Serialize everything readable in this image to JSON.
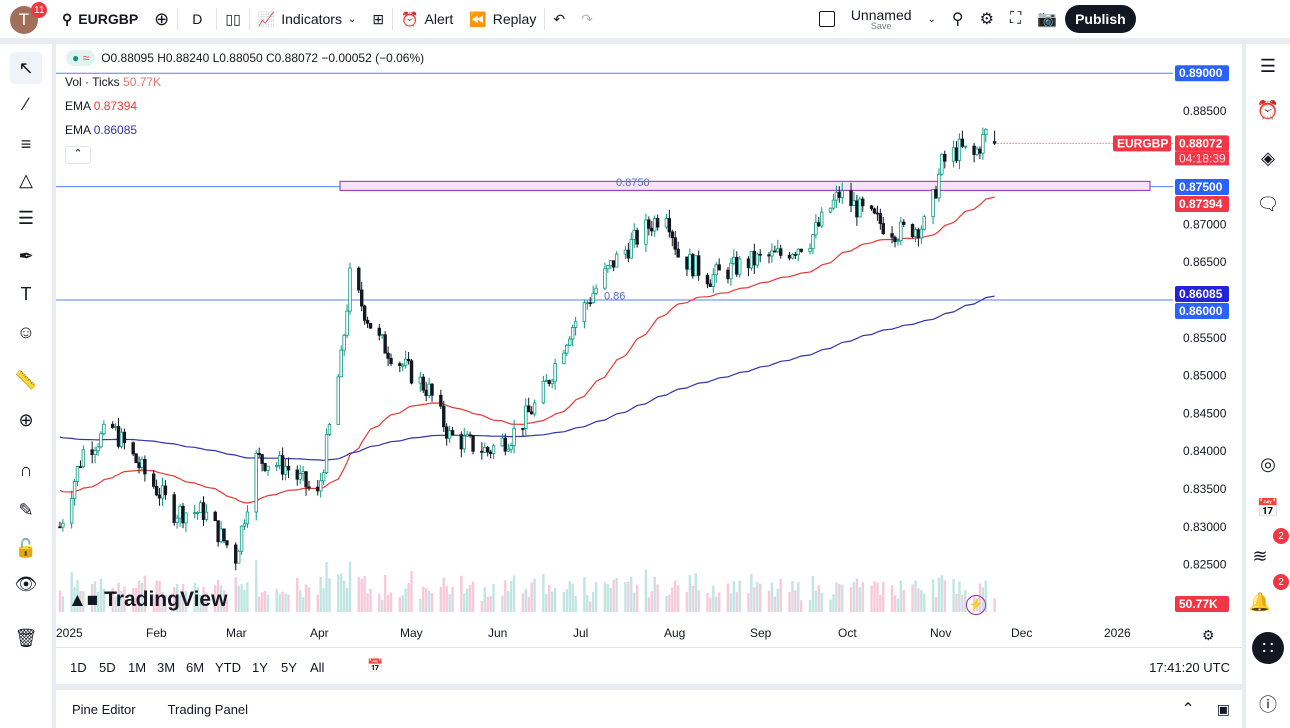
{
  "header": {
    "avatar_letter": "T",
    "notifications": "11",
    "symbol": "EURGBP",
    "interval": "D",
    "indicators": "Indicators",
    "alert": "Alert",
    "replay": "Replay",
    "layout_name": "Unnamed",
    "save": "Save",
    "publish": "Publish"
  },
  "legend": {
    "ohlc": "O0.88095 H0.88240 L0.88050 C0.88072 −0.00052 (−0.06%)",
    "vol_label": "Vol · Ticks",
    "vol_value": "50.77K",
    "ema1_label": "EMA",
    "ema1_value": "0.87394",
    "ema2_label": "EMA",
    "ema2_value": "0.86085"
  },
  "colors": {
    "up": "#089981",
    "down": "#131722",
    "ema_fast": "#e53935",
    "ema_slow": "#3333aa",
    "hline": "#2962ff",
    "zone": "#9c27b0",
    "last": "#f23645"
  },
  "chart": {
    "watermark": "TradingView",
    "price_ticks": [
      "0.88500",
      "0.87000",
      "0.86500",
      "0.85500",
      "0.85000",
      "0.84500",
      "0.84000",
      "0.83500",
      "0.83000",
      "0.82500"
    ],
    "price_labels": {
      "level_89": "0.89000",
      "symbol_tag": "EURGBP",
      "last": "0.88072",
      "countdown": "04:18:39",
      "level_875": "0.87500",
      "ema_fast": "0.87394",
      "ema_slow": "0.86085",
      "level_86": "0.86000",
      "volume": "50.77K"
    },
    "annotations": {
      "zone_text": "0.8750",
      "line_text": "0.86"
    },
    "time_ticks": [
      "2025",
      "Feb",
      "Mar",
      "Apr",
      "May",
      "Jun",
      "Jul",
      "Aug",
      "Sep",
      "Oct",
      "Nov",
      "Dec",
      "2026"
    ],
    "price_path": [
      [
        "2025-01-02",
        0.83
      ],
      [
        "2025-01-10",
        0.84
      ],
      [
        "2025-01-20",
        0.843
      ],
      [
        "2025-01-31",
        0.837
      ],
      [
        "2025-02-10",
        0.832
      ],
      [
        "2025-02-20",
        0.832
      ],
      [
        "2025-03-03",
        0.826
      ],
      [
        "2025-03-10",
        0.839
      ],
      [
        "2025-03-20",
        0.838
      ],
      [
        "2025-03-31",
        0.834
      ],
      [
        "2025-04-08",
        0.852
      ],
      [
        "2025-04-11",
        0.863
      ],
      [
        "2025-04-20",
        0.855
      ],
      [
        "2025-04-30",
        0.851
      ],
      [
        "2025-05-08",
        0.848
      ],
      [
        "2025-05-15",
        0.842
      ],
      [
        "2025-05-28",
        0.84
      ],
      [
        "2025-06-05",
        0.842
      ],
      [
        "2025-06-15",
        0.847
      ],
      [
        "2025-06-25",
        0.856
      ],
      [
        "2025-07-03",
        0.861
      ],
      [
        "2025-07-10",
        0.865
      ],
      [
        "2025-07-20",
        0.869
      ],
      [
        "2025-07-28",
        0.872
      ],
      [
        "2025-08-01",
        0.866
      ],
      [
        "2025-08-12",
        0.863
      ],
      [
        "2025-08-25",
        0.865
      ],
      [
        "2025-09-05",
        0.866
      ],
      [
        "2025-09-15",
        0.868
      ],
      [
        "2025-09-25",
        0.874
      ],
      [
        "2025-10-05",
        0.871
      ],
      [
        "2025-10-15",
        0.869
      ],
      [
        "2025-10-25",
        0.87
      ],
      [
        "2025-10-30",
        0.878
      ],
      [
        "2025-11-05",
        0.88
      ],
      [
        "2025-11-10",
        0.879
      ],
      [
        "2025-11-14",
        0.882
      ],
      [
        "2025-11-17",
        0.8807
      ]
    ]
  },
  "footer": {
    "ranges": [
      "1D",
      "5D",
      "1M",
      "3M",
      "6M",
      "YTD",
      "1Y",
      "5Y",
      "All"
    ],
    "clock": "17:41:20 UTC",
    "pine": "Pine Editor",
    "trading": "Trading Panel",
    "notif_a": "2",
    "notif_b": "2"
  }
}
